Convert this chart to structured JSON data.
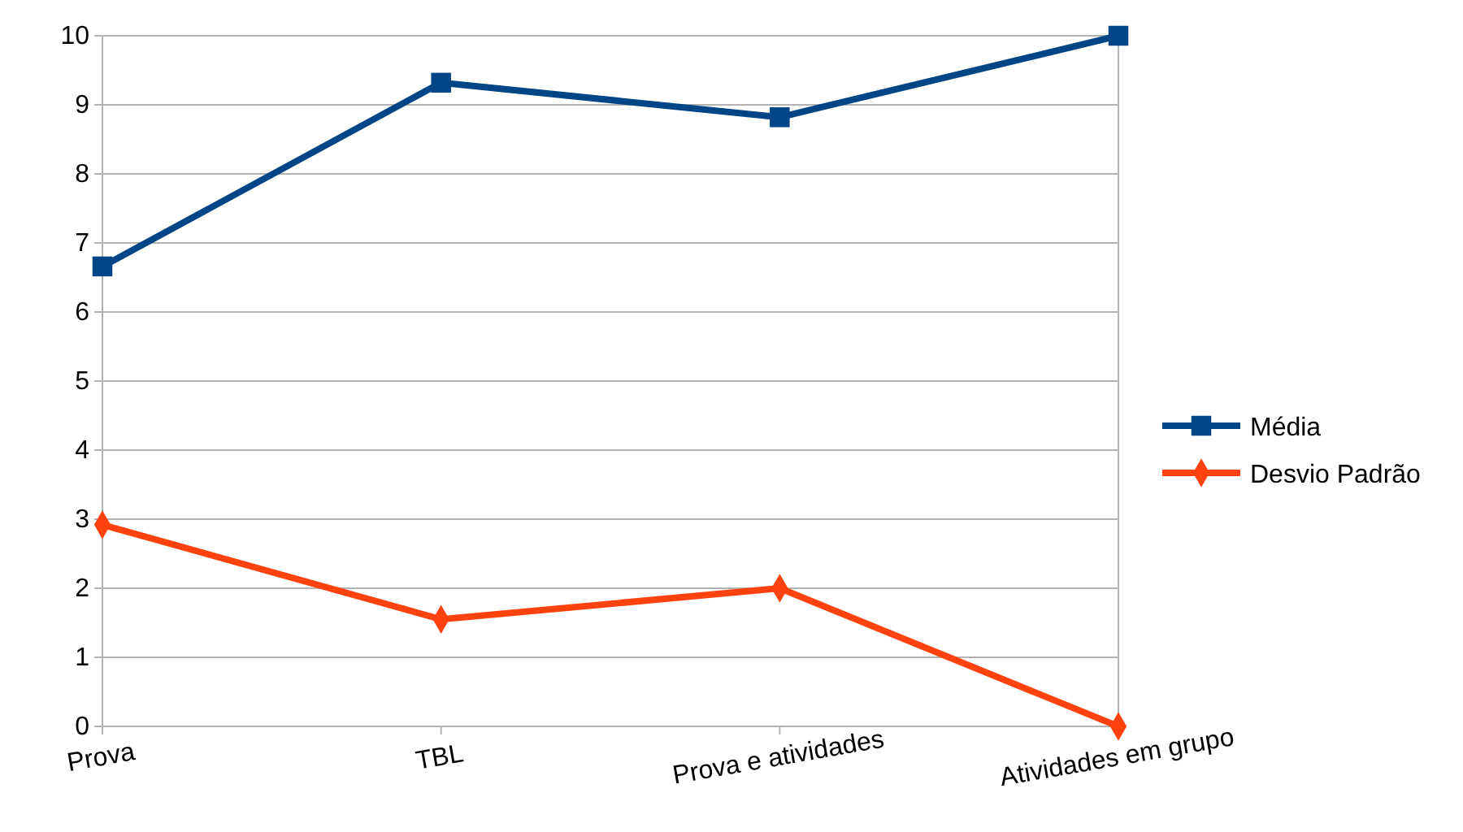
{
  "chart_data": {
    "type": "line",
    "categories": [
      "Prova",
      "TBL",
      "Prova  e atividades",
      "Atividades em grupo"
    ],
    "series": [
      {
        "name": "Média",
        "color": "#004586",
        "values": [
          6.66,
          9.32,
          8.82,
          10
        ],
        "marker": "square"
      },
      {
        "name": "Desvio Padrão",
        "color": "#ff420e",
        "values": [
          2.92,
          1.55,
          2.0,
          0
        ],
        "marker": "diamond"
      }
    ],
    "ylim": [
      0,
      10
    ],
    "yticks": [
      0,
      1,
      2,
      3,
      4,
      5,
      6,
      7,
      8,
      9,
      10
    ],
    "grid": "y",
    "legend": "right",
    "line_style": "solid"
  }
}
